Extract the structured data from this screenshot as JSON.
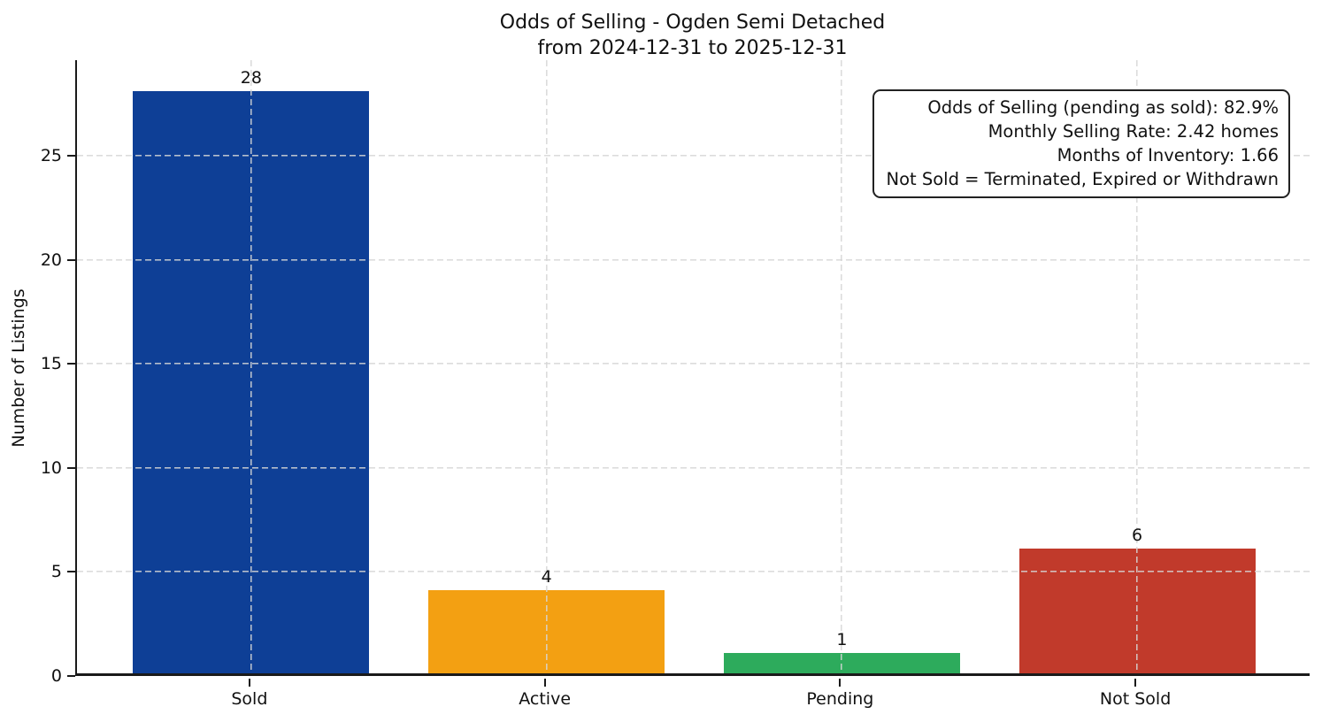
{
  "chart_data": {
    "type": "bar",
    "title": "Odds of Selling - Ogden Semi Detached",
    "subtitle": "from 2024-12-31 to 2025-12-31",
    "categories": [
      "Sold",
      "Active",
      "Pending",
      "Not Sold"
    ],
    "values": [
      28,
      4,
      1,
      6
    ],
    "bar_colors": [
      "#0e3f96",
      "#f3a012",
      "#2dab5c",
      "#c13a2b"
    ],
    "value_labels": [
      "28",
      "4",
      "1",
      "6"
    ],
    "xlabel": "",
    "ylabel": "Number of Listings",
    "ylim": [
      0,
      29.6
    ],
    "yticks": [
      "0",
      "5",
      "10",
      "15",
      "20",
      "25"
    ],
    "grid": {
      "style": "dashed",
      "horizontal": true,
      "vertical": true,
      "color": "#d6d6d6"
    },
    "legend": null,
    "annotation": {
      "position": "top-right",
      "align": "right",
      "lines": [
        "Odds of Selling (pending as sold): 82.9%",
        "Monthly Selling Rate: 2.42 homes",
        "Months of Inventory: 1.66",
        "Not Sold = Terminated, Expired or Withdrawn"
      ]
    },
    "layout": {
      "bar_width_fraction": 0.8,
      "axis_padding_fraction": 0.59
    }
  }
}
